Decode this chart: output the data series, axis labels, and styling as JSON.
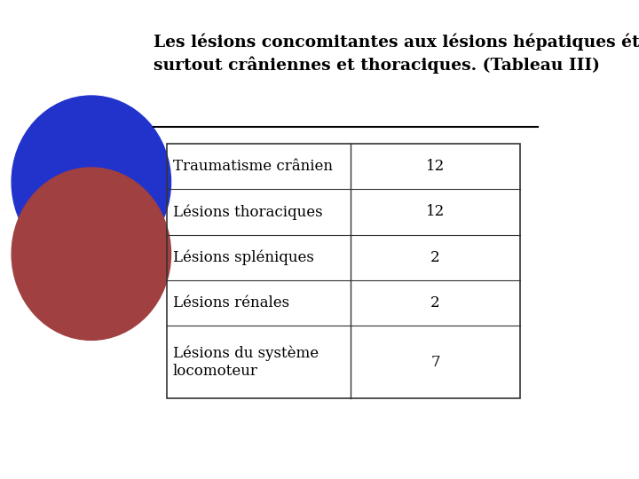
{
  "title_line1": "Les lésions concomitantes aux lésions hépatiques étaient",
  "title_line2": "surtout crâniennes et thoraciques. (Tableau III)",
  "table_rows": [
    [
      "Traumatisme crânien",
      "12"
    ],
    [
      "Lésions thoraciques",
      "12"
    ],
    [
      "Lésions spléniques",
      "2"
    ],
    [
      "Lésions rénales",
      "2"
    ],
    [
      "Lésions du système\nlocomoteur",
      "7"
    ]
  ],
  "bg_color": "#ffffff",
  "text_color": "#000000",
  "title_fontsize": 13.5,
  "table_fontsize": 12,
  "circle_blue_color": "#2233cc",
  "circle_red_color": "#a04040",
  "separator_color": "#000000",
  "table_border_color": "#333333"
}
